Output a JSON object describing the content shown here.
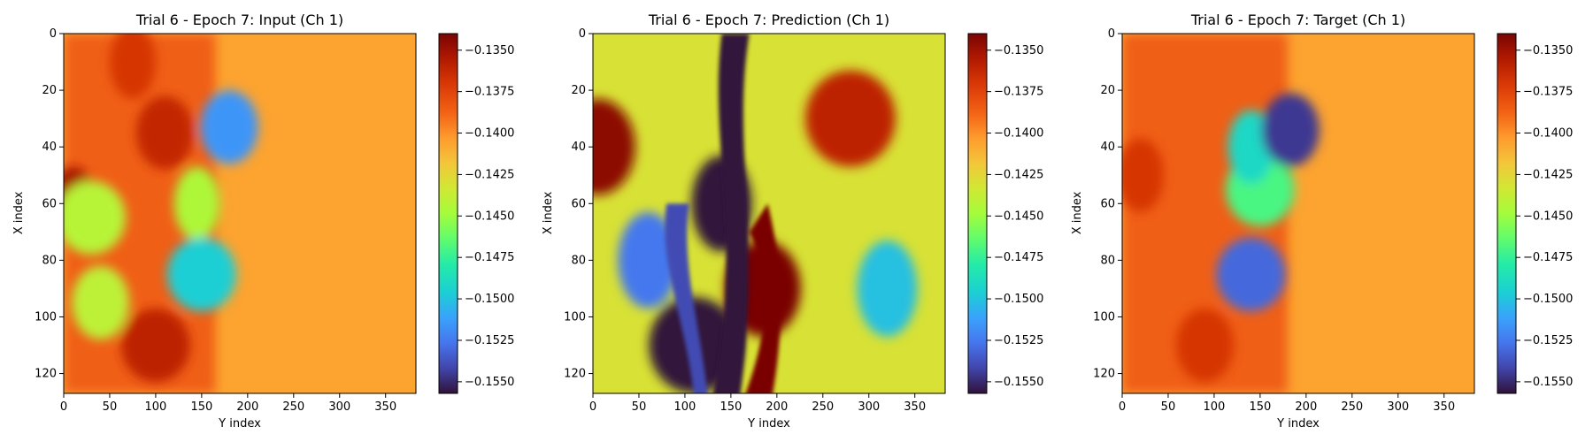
{
  "chart_data": [
    {
      "type": "heatmap",
      "title": "Trial 6 - Epoch 7: Input (Ch 1)",
      "xlabel": "Y index",
      "ylabel": "X index",
      "xlim": [
        0,
        383
      ],
      "ylim": [
        127,
        0
      ],
      "xticks": [
        0,
        50,
        100,
        150,
        200,
        250,
        300,
        350
      ],
      "yticks": [
        0,
        20,
        40,
        60,
        80,
        100,
        120
      ],
      "colorbar": {
        "min": -0.1557,
        "max": -0.134,
        "ticks": [
          "-0.1350",
          "-0.1375",
          "-0.1400",
          "-0.1425",
          "-0.1450",
          "-0.1475",
          "-0.1500",
          "-0.1525",
          "-0.1550"
        ]
      },
      "colormap": "turbo",
      "field": {
        "description": "left region turbulent orange/red with yellow-green patches, front near Y≈150 with small blue vortex near Y≈180,X≈33; right region uniform",
        "background": -0.1405,
        "front_y": 165,
        "regions": [
          {
            "y": 10,
            "x": 60,
            "value": -0.1352
          },
          {
            "y": 110,
            "x": 35,
            "value": -0.1362
          },
          {
            "y": 100,
            "x": 110,
            "value": -0.136
          },
          {
            "y": 75,
            "x": 10,
            "value": -0.137
          },
          {
            "y": 40,
            "x": 95,
            "value": -0.144
          },
          {
            "y": 30,
            "x": 65,
            "value": -0.1442
          },
          {
            "y": 145,
            "x": 60,
            "value": -0.1445
          },
          {
            "y": 180,
            "x": 33,
            "value": -0.1515
          },
          {
            "y": 150,
            "x": 85,
            "value": -0.1495
          }
        ]
      }
    },
    {
      "type": "heatmap",
      "title": "Trial 6 - Epoch 7: Prediction (Ch 1)",
      "xlabel": "Y index",
      "ylabel": "X index",
      "xlim": [
        0,
        383
      ],
      "ylim": [
        127,
        0
      ],
      "xticks": [
        0,
        50,
        100,
        150,
        200,
        250,
        300,
        350
      ],
      "yticks": [
        0,
        20,
        40,
        60,
        80,
        100,
        120
      ],
      "colorbar": {
        "min": -0.1557,
        "max": -0.134,
        "ticks": [
          "-0.1350",
          "-0.1375",
          "-0.1400",
          "-0.1425",
          "-0.1450",
          "-0.1475",
          "-0.1500",
          "-0.1525",
          "-0.1550"
        ]
      },
      "colormap": "turbo",
      "field": {
        "description": "highly varied field: dark purple band near Y≈140-160 across all X, dark red band Y≈170-200 lower half, blue/green/orange streaks elsewhere",
        "background": -0.143,
        "regions": [
          {
            "y": 140,
            "x": 60,
            "value": -0.1557
          },
          {
            "y": 185,
            "x": 90,
            "value": -0.134
          },
          {
            "y": 110,
            "x": 110,
            "value": -0.1557
          },
          {
            "y": 60,
            "x": 80,
            "value": -0.1525
          },
          {
            "y": 5,
            "x": 40,
            "value": -0.1345
          },
          {
            "y": 280,
            "x": 30,
            "value": -0.136
          },
          {
            "y": 320,
            "x": 90,
            "value": -0.15
          }
        ]
      }
    },
    {
      "type": "heatmap",
      "title": "Trial 6 - Epoch 7: Target (Ch 1)",
      "xlabel": "Y index",
      "ylabel": "X index",
      "xlim": [
        0,
        383
      ],
      "ylim": [
        127,
        0
      ],
      "xticks": [
        0,
        50,
        100,
        150,
        200,
        250,
        300,
        350
      ],
      "yticks": [
        0,
        20,
        40,
        60,
        80,
        100,
        120
      ],
      "colorbar": {
        "min": -0.1557,
        "max": -0.134,
        "ticks": [
          "-0.1350",
          "-0.1375",
          "-0.1400",
          "-0.1425",
          "-0.1450",
          "-0.1475",
          "-0.1500",
          "-0.1525",
          "-0.1550"
        ]
      },
      "colormap": "turbo",
      "field": {
        "description": "left region turbulent orange with green band, large green/blue bulge between Y≈100-180, dark vortex at Y≈183,X≈34; right region uniform",
        "background": -0.1405,
        "front_y": 180,
        "regions": [
          {
            "y": 20,
            "x": 50,
            "value": -0.137
          },
          {
            "y": 90,
            "x": 110,
            "value": -0.137
          },
          {
            "y": 150,
            "x": 55,
            "value": -0.147
          },
          {
            "y": 140,
            "x": 40,
            "value": -0.149
          },
          {
            "y": 183,
            "x": 34,
            "value": -0.1545
          },
          {
            "y": 140,
            "x": 85,
            "value": -0.153
          }
        ]
      }
    }
  ]
}
